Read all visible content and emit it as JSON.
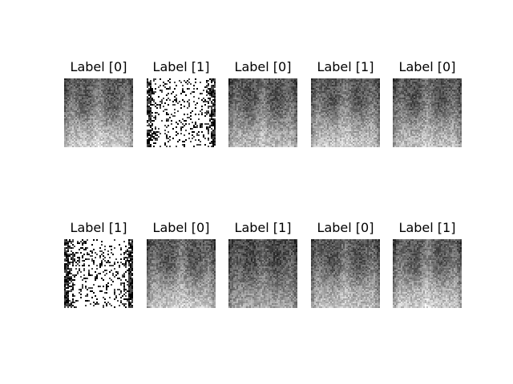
{
  "figure": {
    "panels": [
      {
        "title": "Label [0]",
        "style": "xray",
        "darkness": 0.0,
        "seed": 11
      },
      {
        "title": "Label [1]",
        "style": "binary",
        "darkness": 0.0,
        "seed": 12
      },
      {
        "title": "Label [0]",
        "style": "xray",
        "darkness": 0.08,
        "seed": 13
      },
      {
        "title": "Label [1]",
        "style": "xray",
        "darkness": 0.02,
        "seed": 14
      },
      {
        "title": "Label [0]",
        "style": "xray",
        "darkness": 0.05,
        "seed": 15
      },
      {
        "title": "Label [1]",
        "style": "binary",
        "darkness": 0.0,
        "seed": 16
      },
      {
        "title": "Label [0]",
        "style": "xray",
        "darkness": 0.03,
        "seed": 17
      },
      {
        "title": "Label [1]",
        "style": "xray",
        "darkness": 0.2,
        "seed": 18
      },
      {
        "title": "Label [0]",
        "style": "xray",
        "darkness": 0.06,
        "seed": 19
      },
      {
        "title": "Label [1]",
        "style": "xray",
        "darkness": 0.0,
        "seed": 20
      }
    ]
  }
}
